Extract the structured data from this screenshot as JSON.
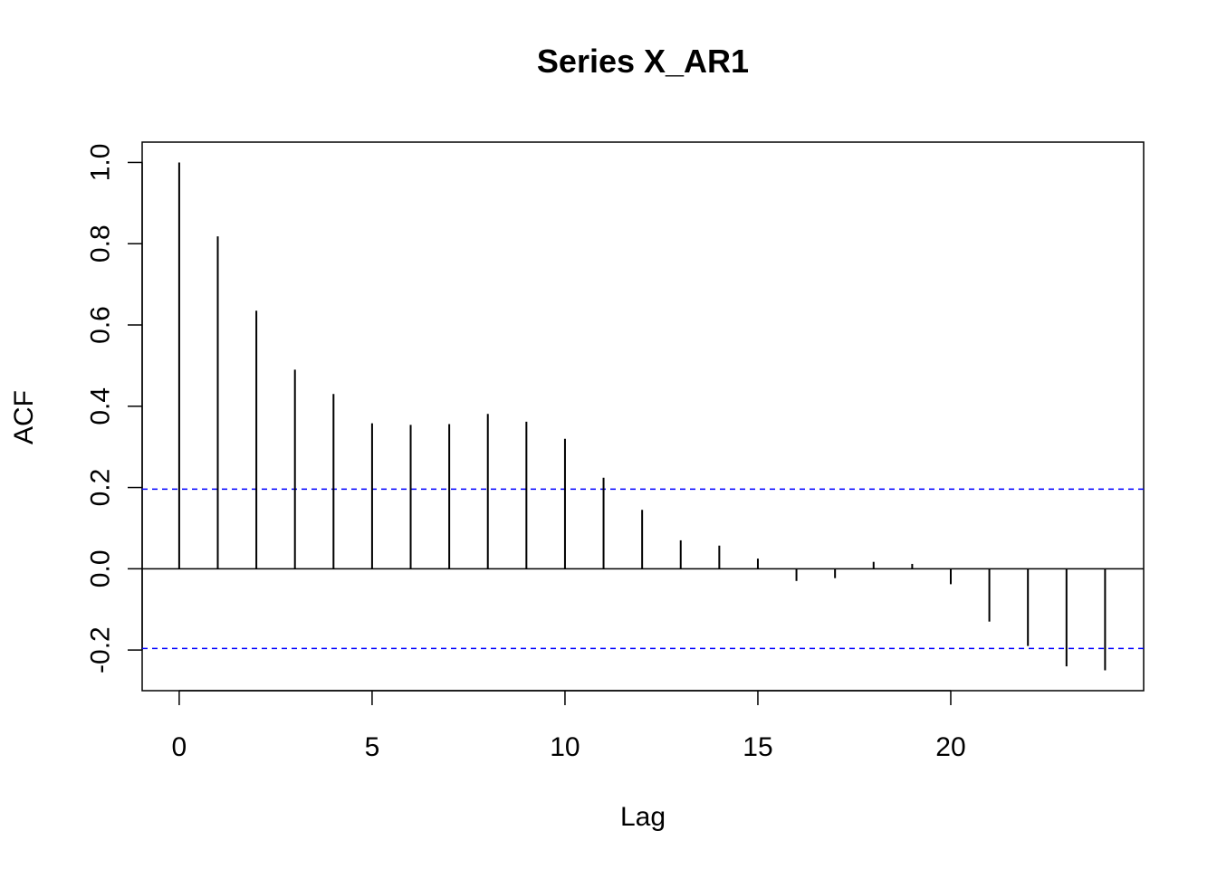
{
  "chart_data": {
    "type": "bar",
    "title": "Series  X_AR1",
    "xlabel": "Lag",
    "ylabel": "ACF",
    "xlim": [
      -0.96,
      25
    ],
    "ylim": [
      -0.3,
      1.05
    ],
    "x_ticks": [
      0,
      5,
      10,
      15,
      20
    ],
    "x_tick_labels": [
      "0",
      "5",
      "10",
      "15",
      "20"
    ],
    "y_ticks": [
      -0.2,
      0.0,
      0.2,
      0.4,
      0.6,
      0.8,
      1.0
    ],
    "y_tick_labels": [
      "-0.2",
      "0.0",
      "0.2",
      "0.4",
      "0.6",
      "0.8",
      "1.0"
    ],
    "lags": [
      0,
      1,
      2,
      3,
      4,
      5,
      6,
      7,
      8,
      9,
      10,
      11,
      12,
      13,
      14,
      15,
      16,
      17,
      18,
      19,
      20,
      21,
      22,
      23,
      24
    ],
    "values": [
      1.0,
      0.818,
      0.635,
      0.49,
      0.43,
      0.358,
      0.354,
      0.356,
      0.381,
      0.362,
      0.32,
      0.224,
      0.145,
      0.07,
      0.057,
      0.025,
      -0.03,
      -0.023,
      0.017,
      0.012,
      -0.038,
      -0.13,
      -0.19,
      -0.24,
      -0.25
    ],
    "confidence_bound": 0.196,
    "colors": {
      "bars": "#000000",
      "confidence_lines": "#0000ff",
      "zero_line": "#000000"
    },
    "grid": false
  }
}
